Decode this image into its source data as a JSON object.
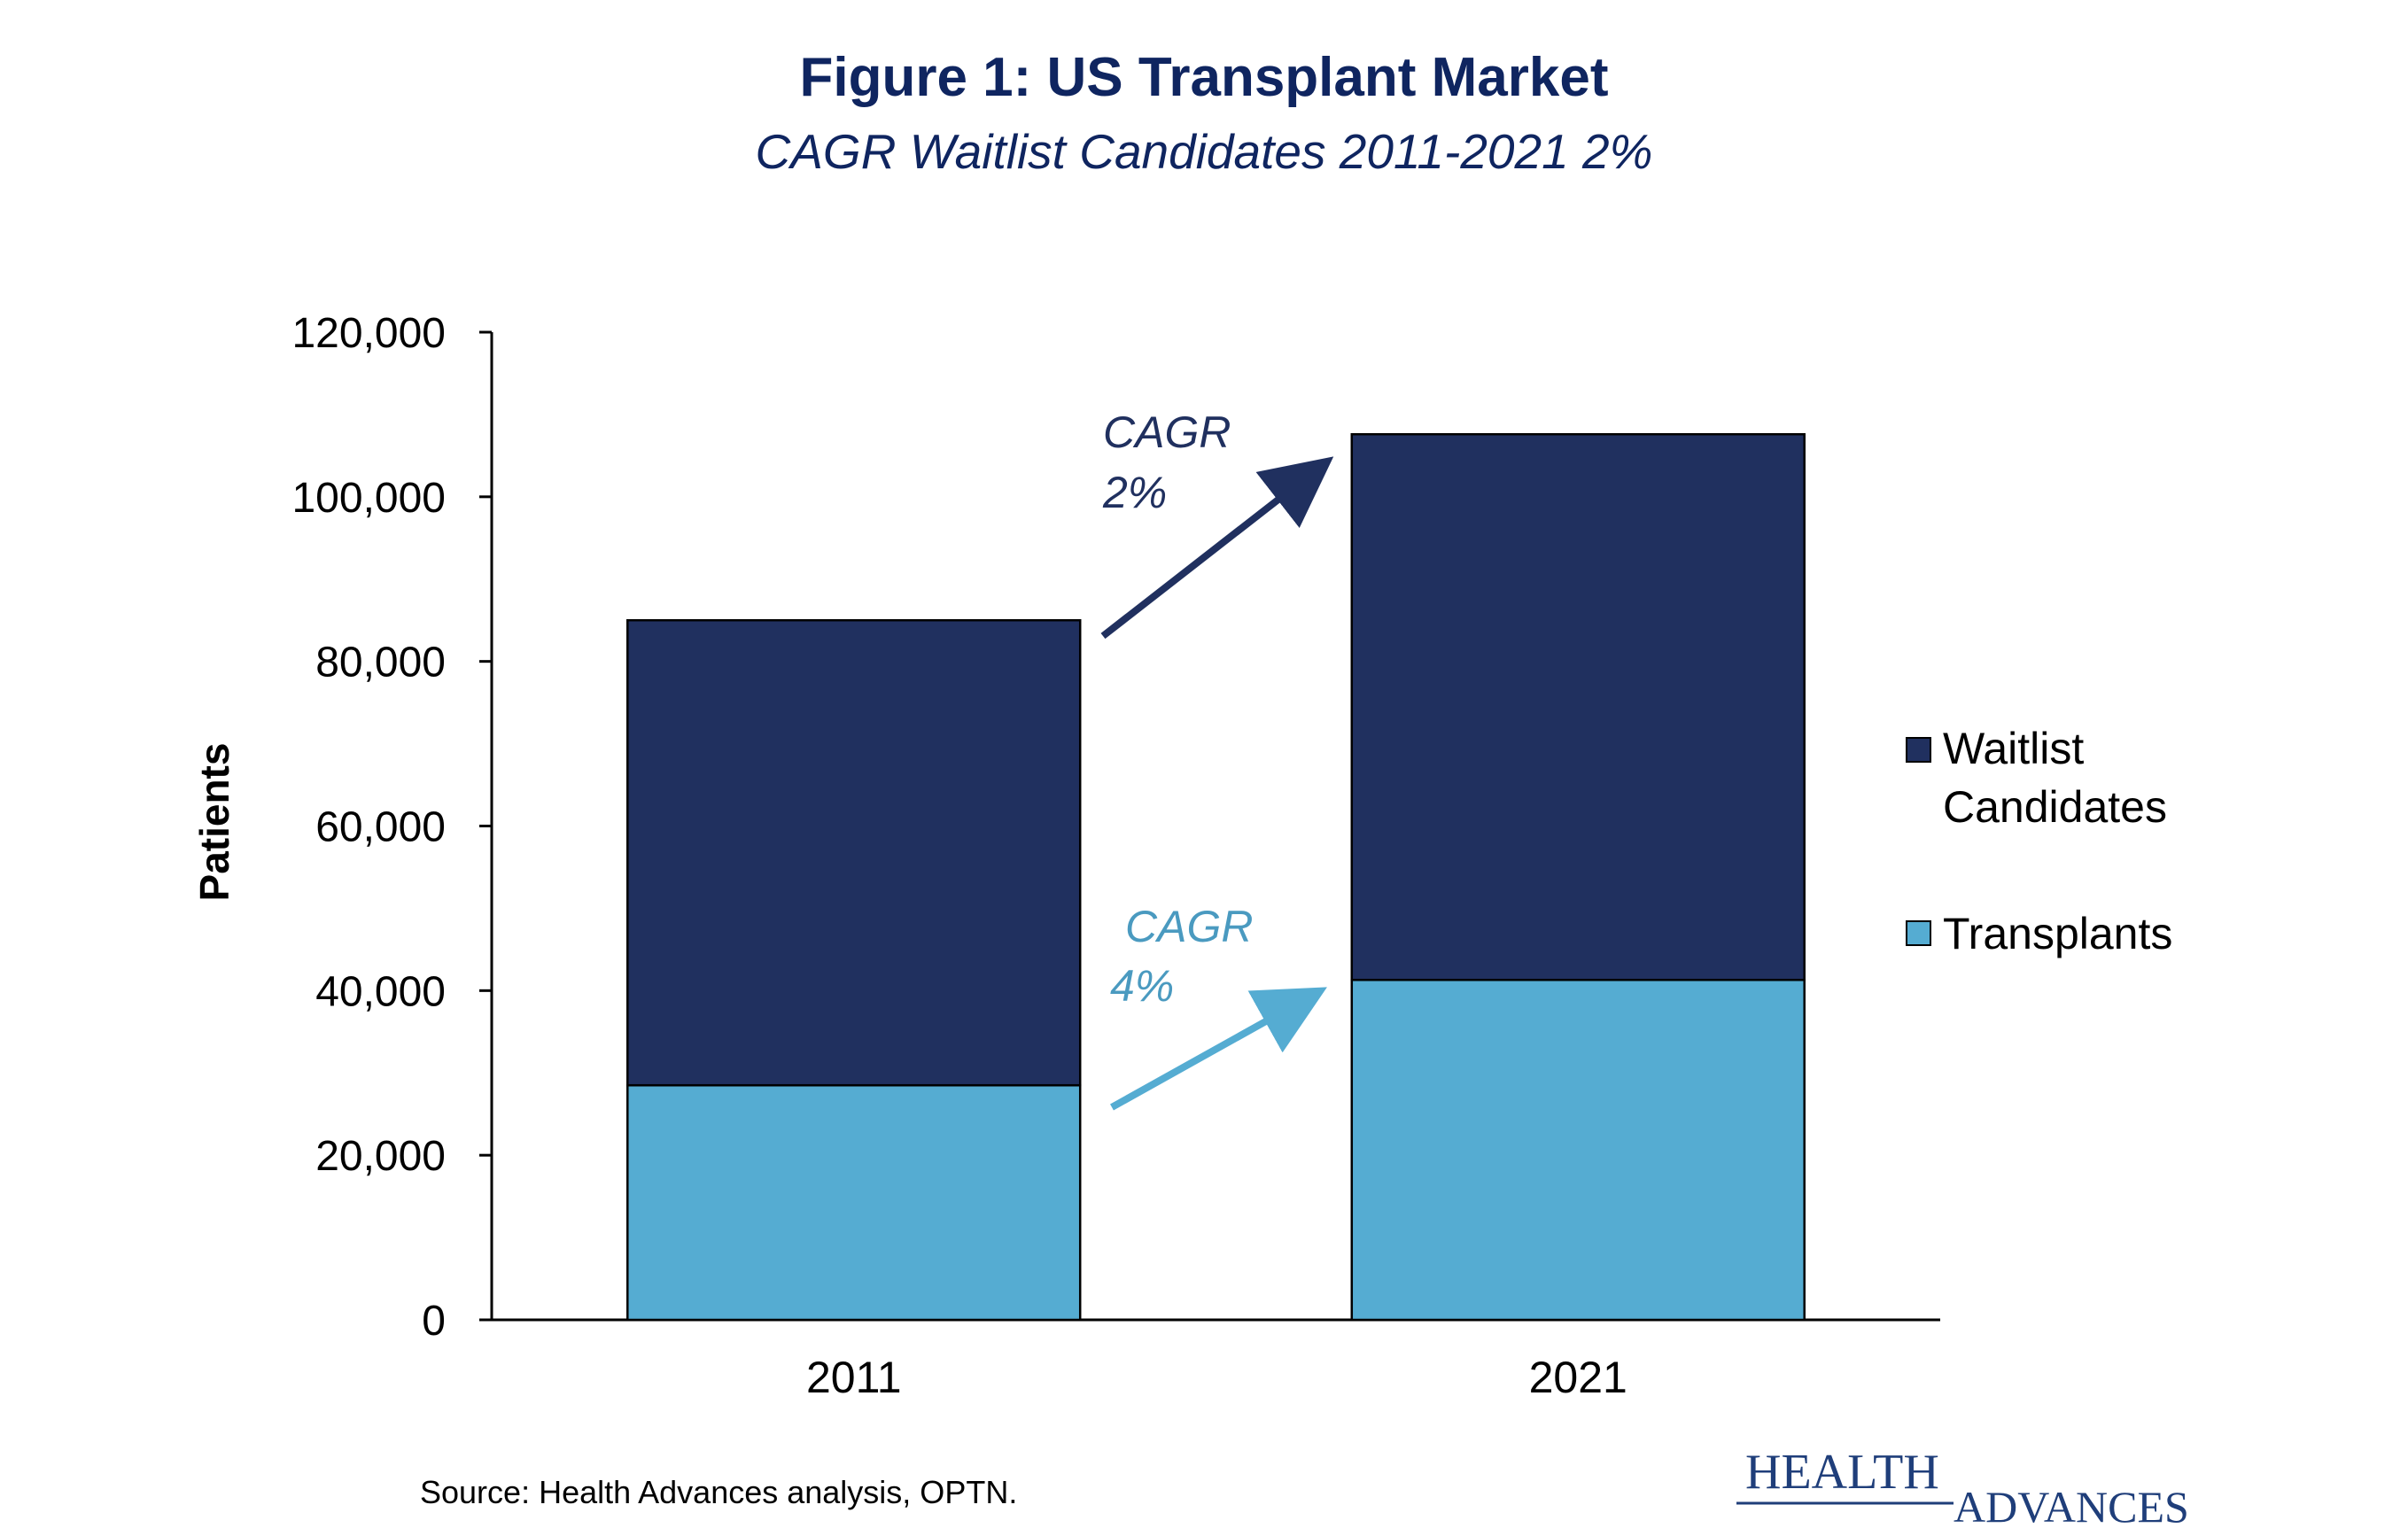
{
  "header": {
    "title": "Figure 1: US Transplant Market",
    "subtitle": "CAGR Waitlist Candidates 2011-2021 2%"
  },
  "footer": {
    "source": "Source:  Health Advances analysis, OPTN.",
    "logo_line1": "HEALTH",
    "logo_line2": "ADVANCES"
  },
  "colors": {
    "text_navy": "#0F2560",
    "waitlist": "#20305F",
    "transplants": "#55ACD2",
    "axis": "#000000",
    "logo": "#1F3E7A"
  },
  "chart_data": {
    "type": "bar",
    "stacked": true,
    "categories": [
      "2011",
      "2021"
    ],
    "series": [
      {
        "name": "Transplants",
        "values": [
          28500,
          41300
        ],
        "color": "#55ACD2"
      },
      {
        "name": "Waitlist Candidates",
        "values": [
          56500,
          66300
        ],
        "color": "#20305F"
      }
    ],
    "ylabel": "Patients",
    "ylim": [
      0,
      120000
    ],
    "yticks": [
      0,
      20000,
      40000,
      60000,
      80000,
      100000,
      120000
    ],
    "ytick_labels": [
      "0",
      "20,000",
      "40,000",
      "60,000",
      "80,000",
      "100,000",
      "120,000"
    ],
    "legend": {
      "position": "right",
      "entries": [
        {
          "label_line1": "Waitlist",
          "label_line2": "Candidates",
          "color": "#20305F"
        },
        {
          "label_line1": "Transplants",
          "label_line2": "",
          "color": "#55ACD2"
        }
      ]
    },
    "annotations": [
      {
        "line1": "CAGR",
        "line2": "2%",
        "color": "#20305F",
        "series": "Waitlist Candidates"
      },
      {
        "line1": "CAGR",
        "line2": "4%",
        "color": "#4A9AC0",
        "series": "Transplants"
      }
    ],
    "grid": false
  }
}
